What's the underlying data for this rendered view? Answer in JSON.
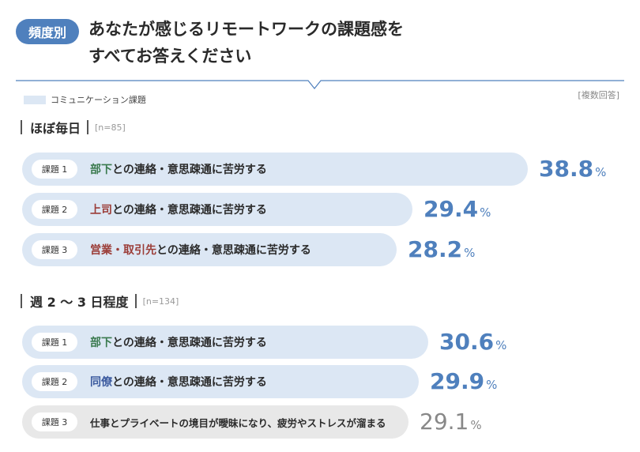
{
  "badge": "頻度別",
  "title_line1": "あなたが感じるリモートワークの課題感を",
  "title_line2": "すべてお答えください",
  "legend": "コミュニケーション課題",
  "multi_answer": "[複数回答]",
  "colors": {
    "accent": "#4f80bd",
    "bar": "#dce7f4",
    "bar_gray": "#e8e8e8"
  },
  "chart_data": [
    {
      "type": "bar",
      "title": "ほぼ毎日",
      "n": "[n=85]",
      "categories": [
        "部下との連絡・意思疎通に苦労する",
        "上司との連絡・意思疎通に苦労する",
        "営業・取引先との連絡・意思疎通に苦労する"
      ],
      "values": [
        38.8,
        29.4,
        28.2
      ],
      "value_labels": [
        "38.8",
        "29.4",
        "28.2"
      ],
      "tags": [
        "課題 1",
        "課題 2",
        "課題 3"
      ],
      "highlights": [
        "部下",
        "上司",
        "営業・取引先"
      ],
      "rests": [
        "との連絡・意思疎通に苦労する",
        "との連絡・意思疎通に苦労する",
        "との連絡・意思疎通に苦労する"
      ],
      "unit": "%"
    },
    {
      "type": "bar",
      "title": "週 2 〜 3 日程度",
      "n": "[n=134]",
      "categories": [
        "部下との連絡・意思疎通に苦労する",
        "同僚との連絡・意思疎通に苦労する",
        "仕事とプライベートの境目が曖昧になり、疲労やストレスが溜まる"
      ],
      "values": [
        30.6,
        29.9,
        29.1
      ],
      "value_labels": [
        "30.6",
        "29.9",
        "29.1"
      ],
      "tags": [
        "課題 1",
        "課題 2",
        "課題 3"
      ],
      "highlights": [
        "部下",
        "同僚",
        ""
      ],
      "rests": [
        "との連絡・意思疎通に苦労する",
        "との連絡・意思疎通に苦労する",
        "仕事とプライベートの境目が曖昧になり、疲労やストレスが溜まる"
      ],
      "unit": "%"
    }
  ]
}
